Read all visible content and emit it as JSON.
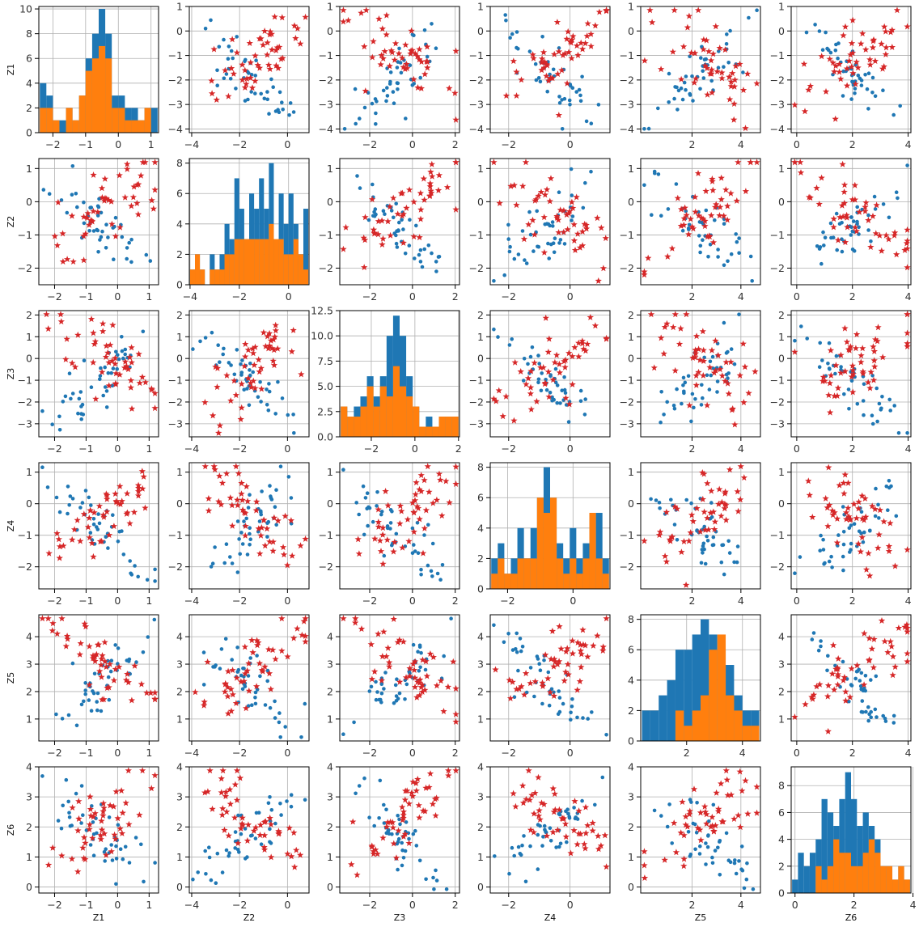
{
  "colors": {
    "blue": "#1f77b4",
    "orange": "#ff7f0e",
    "red": "#d62728",
    "grid": "#b0b0b0"
  },
  "chart_data": {
    "type": "scatter",
    "layout": "6x6 pair-plot matrix: histograms on the diagonal, scatter plots off the diagonal (blue dots and red stars)",
    "axis_labels": [
      "Z1",
      "Z2",
      "Z3",
      "Z4",
      "Z5",
      "Z6"
    ],
    "xlabels": [
      "Z1",
      "Z2",
      "Z3",
      "Z4",
      "Z5",
      "Z6"
    ],
    "ylabels": [
      "Z1",
      "Z2",
      "Z3",
      "Z4",
      "Z5",
      "Z6"
    ],
    "grid": true,
    "variables": [
      {
        "name": "Z1",
        "range": [
          -2.5,
          1.3
        ],
        "ticks": [
          -2,
          -1,
          0,
          1
        ]
      },
      {
        "name": "Z2",
        "range": [
          -4.0,
          0.9
        ],
        "ticks": [
          -4,
          -2,
          0
        ]
      },
      {
        "name": "Z3",
        "range": [
          -3.4,
          2.1
        ],
        "ticks": [
          -2,
          0,
          2
        ]
      },
      {
        "name": "Z4",
        "range": [
          -2.5,
          1.3
        ],
        "ticks": [
          -2,
          0
        ]
      },
      {
        "name": "Z5",
        "range": [
          0.0,
          4.8
        ],
        "ticks": [
          2,
          4
        ]
      },
      {
        "name": "Z6",
        "range": [
          -0.2,
          4.0
        ],
        "ticks": [
          0,
          2,
          4
        ]
      }
    ],
    "scatter_yranges": [
      {
        "range": [
          -4.15,
          1.0
        ],
        "ticks": [
          -4,
          -3,
          -2,
          -1,
          0,
          1
        ]
      },
      {
        "range": [
          -2.5,
          1.3
        ],
        "ticks": [
          -2,
          -1,
          0,
          1
        ]
      },
      {
        "range": [
          -3.6,
          2.2
        ],
        "ticks": [
          -3,
          -2,
          -1,
          0,
          1,
          2
        ]
      },
      {
        "range": [
          -2.7,
          1.3
        ],
        "ticks": [
          -2,
          -1,
          0,
          1
        ]
      },
      {
        "range": [
          0.2,
          4.8
        ],
        "ticks": [
          1,
          2,
          3,
          4
        ]
      },
      {
        "range": [
          -0.2,
          4.0
        ],
        "ticks": [
          0,
          1,
          2,
          3,
          4
        ]
      }
    ],
    "scatter_xranges": [
      {
        "range": [
          -2.5,
          1.3
        ],
        "ticks": [
          -2,
          -1,
          0,
          1
        ]
      },
      {
        "range": [
          -4.1,
          0.9
        ],
        "ticks": [
          -4,
          -2,
          0
        ]
      },
      {
        "range": [
          -3.4,
          2.2
        ],
        "ticks": [
          -2,
          0,
          2
        ]
      },
      {
        "range": [
          -2.6,
          1.3
        ],
        "ticks": [
          -2,
          0
        ]
      },
      {
        "range": [
          -0.1,
          4.8
        ],
        "ticks": [
          2,
          4
        ]
      },
      {
        "range": [
          -0.2,
          4.1
        ],
        "ticks": [
          0,
          2,
          4
        ]
      }
    ],
    "histograms": [
      {
        "ylim": [
          0,
          10.2
        ],
        "yticks": [
          0,
          2,
          4,
          6,
          8,
          10
        ],
        "ytick_labels": [
          "0",
          "2",
          "4",
          "6",
          "8",
          "10"
        ],
        "edges": [
          -2.4,
          -2.2,
          -2.0,
          -1.8,
          -1.6,
          -1.4,
          -1.2,
          -1.0,
          -0.8,
          -0.6,
          -0.4,
          -0.2,
          0.0,
          0.2,
          0.4,
          0.6,
          0.8,
          1.0,
          1.2
        ],
        "blue": [
          4,
          3,
          1,
          1,
          2,
          1,
          3,
          6,
          8,
          10,
          8,
          3,
          3,
          2,
          2,
          1,
          2,
          2
        ],
        "orange": [
          2,
          2,
          1,
          0,
          2,
          1,
          3,
          5,
          6,
          7,
          6,
          2,
          2,
          1,
          1,
          1,
          2,
          0
        ]
      },
      {
        "ylim": [
          0,
          8.3
        ],
        "yticks": [
          0,
          2,
          4,
          6,
          8
        ],
        "ytick_labels": [
          "0",
          "2",
          "4",
          "6",
          "8"
        ],
        "edges": [
          -4.0,
          -3.8,
          -3.6,
          -3.4,
          -3.2,
          -3.0,
          -2.8,
          -2.6,
          -2.4,
          -2.2,
          -2.0,
          -1.8,
          -1.6,
          -1.4,
          -1.2,
          -1.0,
          -0.8,
          -0.6,
          -0.4,
          -0.2,
          0.0,
          0.2,
          0.4,
          0.6,
          0.8
        ],
        "blue": [
          1,
          2,
          1,
          0,
          2,
          1,
          2,
          4,
          3,
          7,
          5,
          3,
          6,
          5,
          7,
          5,
          8,
          2,
          6,
          4,
          6,
          4,
          2,
          5
        ],
        "orange": [
          1,
          2,
          1,
          0,
          1,
          1,
          1,
          2,
          2,
          3,
          3,
          3,
          3,
          3,
          3,
          3,
          4,
          3,
          3,
          2,
          2,
          3,
          2,
          1
        ]
      },
      {
        "ylim": [
          0,
          12.5
        ],
        "yticks": [
          0,
          2.5,
          5.0,
          7.5,
          10.0,
          12.5
        ],
        "ytick_labels": [
          "0.0",
          "2.5",
          "5.0",
          "7.5",
          "10.0",
          "12.5"
        ],
        "edges": [
          -3.4,
          -3.1,
          -2.8,
          -2.5,
          -2.2,
          -1.9,
          -1.6,
          -1.3,
          -1.0,
          -0.7,
          -0.4,
          -0.1,
          0.2,
          0.5,
          0.8,
          1.1,
          1.4,
          1.7,
          2.0
        ],
        "blue": [
          3,
          2,
          3,
          4,
          6,
          4,
          6,
          10,
          12,
          10,
          6,
          3,
          1,
          2,
          1,
          2,
          2,
          2
        ],
        "orange": [
          3,
          2,
          2,
          3,
          5,
          3,
          5,
          4,
          7,
          5,
          4,
          3,
          1,
          1,
          1,
          2,
          2,
          2
        ]
      },
      {
        "ylim": [
          0,
          8.3
        ],
        "yticks": [
          0,
          2,
          4,
          6,
          8
        ],
        "ytick_labels": [
          "0",
          "2",
          "4",
          "6",
          "8"
        ],
        "edges": [
          -2.5,
          -2.3,
          -2.1,
          -1.9,
          -1.7,
          -1.5,
          -1.3,
          -1.1,
          -0.9,
          -0.7,
          -0.5,
          -0.3,
          -0.1,
          0.1,
          0.3,
          0.5,
          0.7,
          0.9,
          1.1
        ],
        "blue": [
          2,
          3,
          1,
          2,
          4,
          2,
          4,
          6,
          8,
          6,
          3,
          2,
          4,
          2,
          3,
          5,
          5,
          2
        ],
        "orange": [
          1,
          2,
          1,
          1,
          2,
          2,
          2,
          6,
          5,
          6,
          2,
          1,
          2,
          1,
          2,
          5,
          2,
          1
        ]
      },
      {
        "ylim": [
          0,
          8.3
        ],
        "yticks": [
          0,
          2,
          4,
          6,
          8
        ],
        "ytick_labels": [
          "0",
          "2",
          "4",
          "6",
          "8"
        ],
        "edges": [
          0.4,
          0.7,
          1.0,
          1.3,
          1.6,
          1.9,
          2.2,
          2.5,
          2.8,
          3.1,
          3.4,
          3.7,
          4.0,
          4.3,
          4.6
        ],
        "blue": [
          2,
          2,
          3,
          4,
          6,
          6,
          7,
          8,
          7,
          6,
          5,
          3,
          2,
          2
        ],
        "orange": [
          0,
          0,
          0,
          0,
          2,
          1,
          2,
          3,
          6,
          7,
          3,
          2,
          1,
          1
        ]
      },
      {
        "ylim": [
          0,
          9.4
        ],
        "yticks": [
          0,
          2,
          4,
          6,
          8
        ],
        "ytick_labels": [
          "0",
          "2",
          "4",
          "6",
          "8"
        ],
        "edges": [
          -0.1,
          0.1,
          0.3,
          0.5,
          0.7,
          0.9,
          1.1,
          1.3,
          1.5,
          1.7,
          1.9,
          2.1,
          2.3,
          2.5,
          2.7,
          2.9,
          3.1,
          3.3,
          3.5,
          3.7,
          3.9
        ],
        "blue": [
          1,
          3,
          2,
          3,
          4,
          7,
          6,
          5,
          7,
          9,
          7,
          5,
          6,
          5,
          4,
          2,
          2,
          1,
          2,
          1
        ],
        "orange": [
          0,
          0,
          0,
          0,
          2,
          1,
          2,
          4,
          3,
          3,
          2,
          2,
          3,
          4,
          3,
          2,
          2,
          1,
          2,
          1
        ]
      }
    ]
  }
}
